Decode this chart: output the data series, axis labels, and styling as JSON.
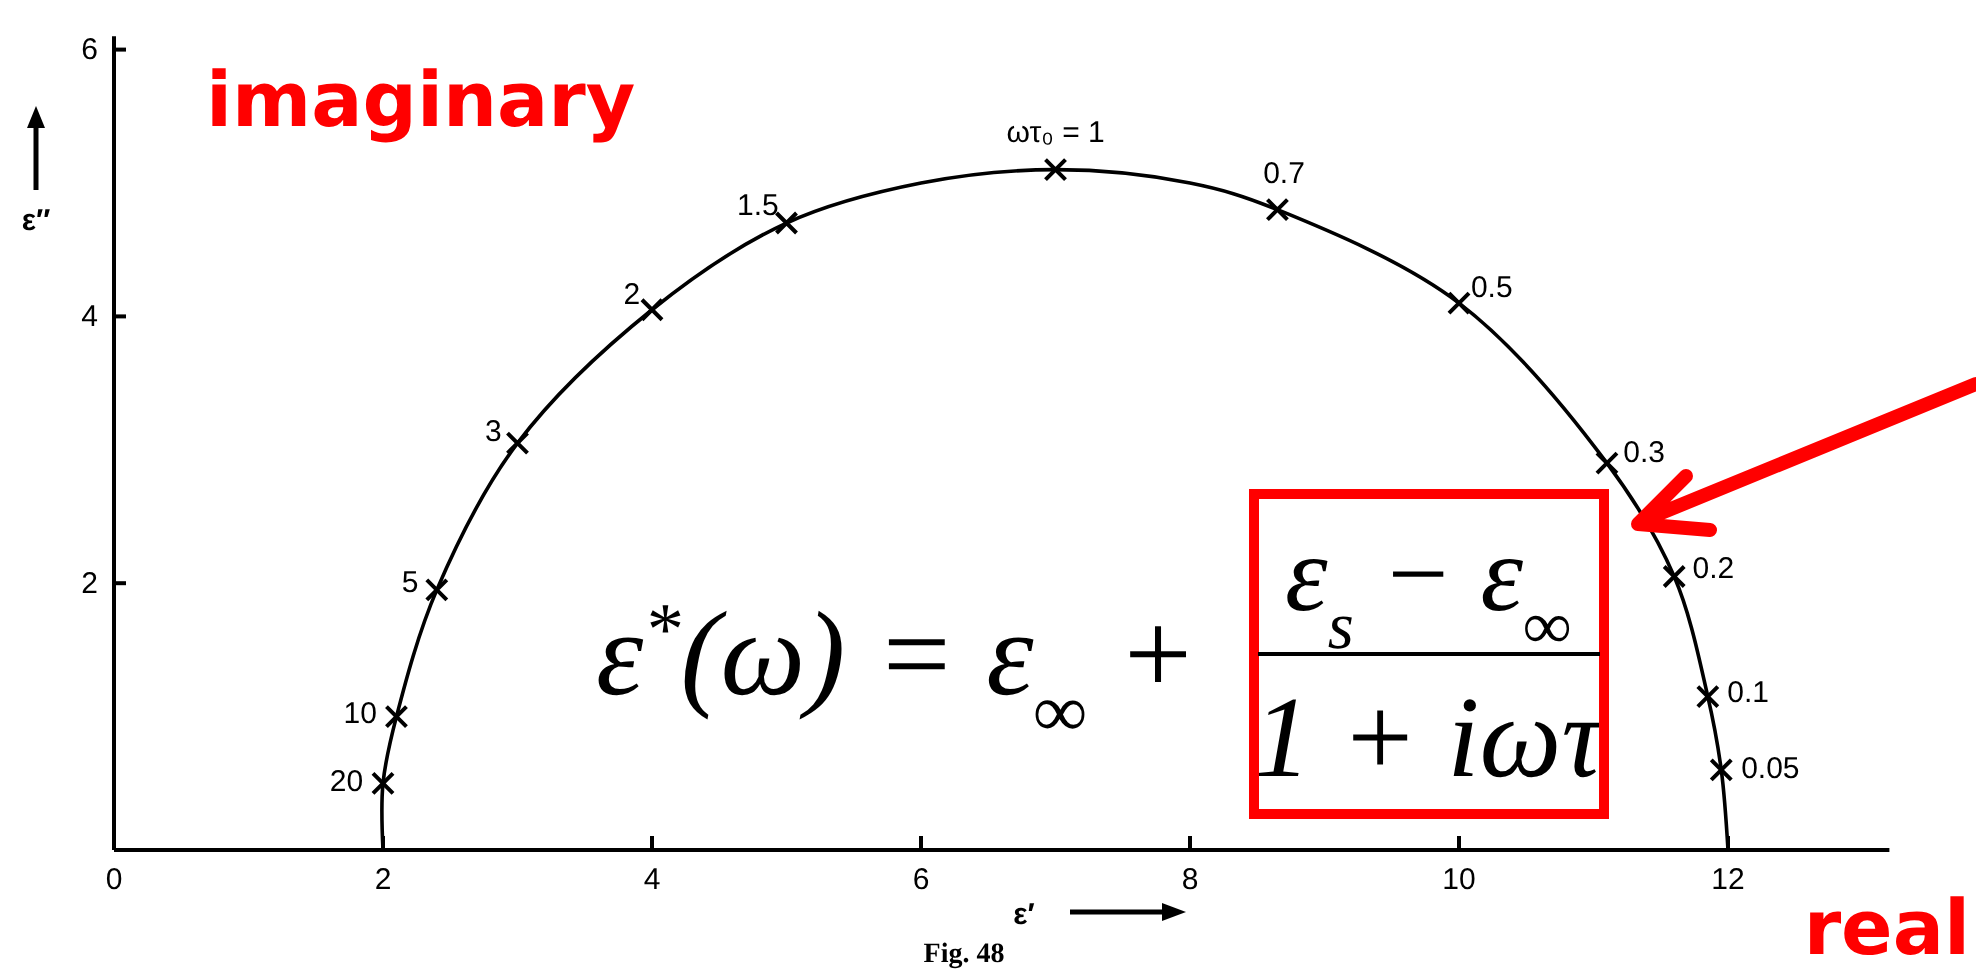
{
  "chart_data": {
    "type": "scatter",
    "xlabel": "ε′",
    "ylabel": "ε″",
    "xlim": [
      0,
      13.2
    ],
    "ylim": [
      0,
      6.1
    ],
    "xticks": [
      0,
      2,
      4,
      6,
      8,
      10,
      12
    ],
    "yticks": [
      2,
      4,
      6
    ],
    "series": [
      {
        "type": "line",
        "color": "#000000",
        "marker": "none",
        "x": [
          2.0,
          2.0,
          2.1,
          2.4,
          3.0,
          4.0,
          5.0,
          6.0,
          7.0,
          8.0,
          8.65,
          10.0,
          11.1,
          11.6,
          11.85,
          11.95,
          12.0
        ],
        "values": [
          0,
          0.5,
          1.0,
          1.95,
          3.05,
          4.05,
          4.7,
          5.0,
          5.1,
          5.0,
          4.8,
          4.1,
          2.9,
          2.05,
          1.15,
          0.6,
          0
        ]
      },
      {
        "color": "#000000",
        "marker": "cross",
        "x": [
          2.0,
          2.1,
          2.4,
          3.0,
          4.0,
          5.0,
          7.0,
          8.65,
          10.0,
          11.1,
          11.6,
          11.85,
          11.95
        ],
        "values": [
          0.5,
          1.0,
          1.95,
          3.05,
          4.05,
          4.7,
          5.1,
          4.8,
          4.1,
          2.9,
          2.05,
          1.15,
          0.6
        ]
      }
    ],
    "annotations": [
      "imaginary",
      "real",
      "ε$^{*}$(ω) = ε$_{∞}$ +",
      "ε$_{s}$ − ε$_{∞}$",
      "1 + iωτ",
      "Fig. 48",
      {
        "text": "20",
        "x": 2.0,
        "y": 0.5
      },
      {
        "text": "10",
        "x": 2.1,
        "y": 1.0
      },
      {
        "text": "5",
        "x": 2.4,
        "y": 1.95
      },
      {
        "text": "3",
        "x": 3.0,
        "y": 3.05
      },
      {
        "text": "2",
        "x": 4.0,
        "y": 4.05
      },
      {
        "text": "1.5",
        "x": 5.0,
        "y": 4.7
      },
      {
        "text": "ωτ₀ = 1",
        "x": 7.0,
        "y": 5.1
      },
      {
        "text": "0.7",
        "x": 8.65,
        "y": 4.8
      },
      {
        "text": "0.5",
        "x": 10.0,
        "y": 4.1
      },
      {
        "text": "0.3",
        "x": 11.1,
        "y": 2.9
      },
      {
        "text": "0.2",
        "x": 11.6,
        "y": 2.05
      },
      {
        "text": "0.1",
        "x": 11.85,
        "y": 1.15
      },
      {
        "text": "0.05",
        "x": 11.95,
        "y": 0.6
      }
    ]
  }
}
